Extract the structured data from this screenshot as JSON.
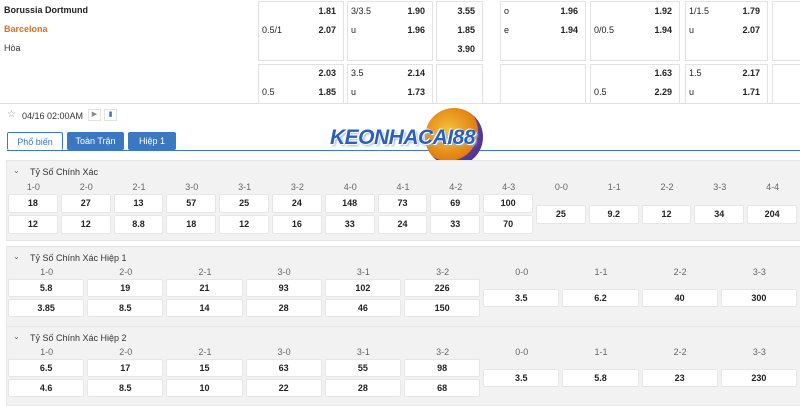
{
  "match": {
    "teams": [
      "Borussia Dortmund",
      "Barcelona",
      "Hòa"
    ],
    "rows": [
      {
        "hdp": {
          "odds": "1.81"
        },
        "ou": {
          "line": "3/3.5",
          "odds": "1.90"
        },
        "x12": {
          "odds": "3.55"
        },
        "oe": {
          "line": "o",
          "odds": "1.96"
        },
        "hdp1": {
          "odds": "1.92"
        },
        "ou1": {
          "line": "1/1.5",
          "odds": "1.79"
        }
      },
      {
        "hdp": {
          "line": "0.5/1",
          "odds": "2.07"
        },
        "ou": {
          "line": "u",
          "odds": "1.96"
        },
        "x12": {
          "odds": "1.85"
        },
        "oe": {
          "line": "e",
          "odds": "1.94"
        },
        "hdp1": {
          "line": "0/0.5",
          "odds": "1.94"
        },
        "ou1": {
          "line": "u",
          "odds": "2.07"
        }
      },
      {
        "x12": {
          "odds": "3.90"
        }
      },
      {
        "hdp": {
          "odds": "2.03"
        },
        "ou": {
          "line": "3.5",
          "odds": "2.14"
        },
        "hdp1": {
          "odds": "1.63"
        },
        "ou1": {
          "line": "1.5",
          "odds": "2.17"
        }
      },
      {
        "hdp": {
          "line": "0.5",
          "odds": "1.85"
        },
        "ou": {
          "line": "u",
          "odds": "1.73"
        },
        "hdp1": {
          "line": "0.5",
          "odds": "2.29"
        },
        "ou1": {
          "line": "u",
          "odds": "1.71"
        }
      }
    ]
  },
  "datetime": "04/16 02:00AM",
  "tabs": [
    "Phổ biến",
    "Toàn Trận",
    "Hiệp 1"
  ],
  "logo": "KEONHACAI88",
  "sections": [
    {
      "title": "Tỷ Số Chính Xác",
      "scores": [
        "1-0",
        "2-0",
        "2-1",
        "3-0",
        "3-1",
        "3-2",
        "4-0",
        "4-1",
        "4-2",
        "4-3"
      ],
      "home": [
        "18",
        "27",
        "13",
        "57",
        "25",
        "24",
        "148",
        "73",
        "69",
        "100"
      ],
      "away": [
        "12",
        "12",
        "8.8",
        "18",
        "12",
        "16",
        "33",
        "24",
        "33",
        "70"
      ],
      "draw_scores": [
        "0-0",
        "1-1",
        "2-2",
        "3-3",
        "4-4"
      ],
      "draw": [
        "25",
        "9.2",
        "12",
        "34",
        "204"
      ]
    },
    {
      "title": "Tỷ Số Chính Xác Hiệp 1",
      "scores": [
        "1-0",
        "2-0",
        "2-1",
        "3-0",
        "3-1",
        "3-2"
      ],
      "home": [
        "5.8",
        "19",
        "21",
        "93",
        "102",
        "226"
      ],
      "away": [
        "3.85",
        "8.5",
        "14",
        "28",
        "46",
        "150"
      ],
      "draw_scores": [
        "0-0",
        "1-1",
        "2-2",
        "3-3"
      ],
      "draw": [
        "3.5",
        "6.2",
        "40",
        "300"
      ]
    },
    {
      "title": "Tỷ Số Chính Xác Hiệp 2",
      "scores": [
        "1-0",
        "2-0",
        "2-1",
        "3-0",
        "3-1",
        "3-2"
      ],
      "home": [
        "6.5",
        "17",
        "15",
        "63",
        "55",
        "98"
      ],
      "away": [
        "4.6",
        "8.5",
        "10",
        "22",
        "28",
        "68"
      ],
      "draw_scores": [
        "0-0",
        "1-1",
        "2-2",
        "3-3"
      ],
      "draw": [
        "3.5",
        "5.8",
        "23",
        "230"
      ]
    }
  ]
}
